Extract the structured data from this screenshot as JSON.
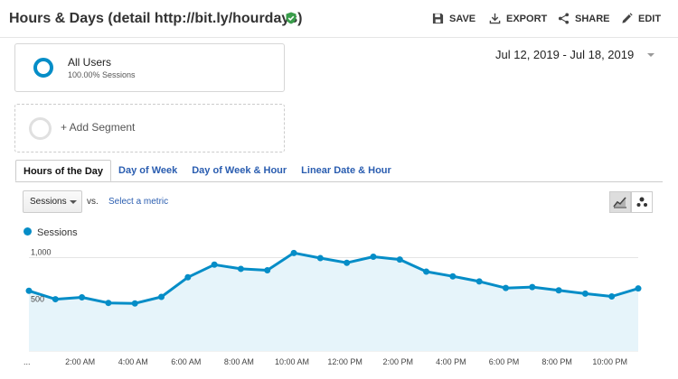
{
  "header": {
    "title": "Hours & Days (detail http://bit.ly/hourdays)",
    "actions": {
      "save": "SAVE",
      "export": "EXPORT",
      "share": "SHARE",
      "edit": "EDIT"
    }
  },
  "segments": {
    "active": {
      "name": "All Users",
      "detail": "100.00% Sessions"
    },
    "add_label": "+ Add Segment"
  },
  "date_range": "Jul 12, 2019 - Jul 18, 2019",
  "tabs": [
    "Hours of the Day",
    "Day of Week",
    "Day of Week & Hour",
    "Linear Date & Hour"
  ],
  "controls": {
    "metric_select": "Sessions",
    "vs": "vs.",
    "select_metric": "Select a metric"
  },
  "colors": {
    "accent": "#058dc7",
    "link": "#2a5db0",
    "verified": "#3a9d4b",
    "fill": "#e6f4fa"
  },
  "chart_data": {
    "type": "area",
    "series": [
      {
        "name": "Sessions",
        "values": [
          645,
          555,
          575,
          515,
          510,
          580,
          790,
          925,
          880,
          865,
          1050,
          995,
          945,
          1010,
          980,
          850,
          800,
          745,
          675,
          685,
          650,
          615,
          585,
          670
        ]
      }
    ],
    "x": [
      0,
      1,
      2,
      3,
      4,
      5,
      6,
      7,
      8,
      9,
      10,
      11,
      12,
      13,
      14,
      15,
      16,
      17,
      18,
      19,
      20,
      21,
      22,
      23
    ],
    "x_tick_labels": [
      "...",
      "2:00 AM",
      "4:00 AM",
      "6:00 AM",
      "8:00 AM",
      "10:00 AM",
      "12:00 PM",
      "2:00 PM",
      "4:00 PM",
      "6:00 PM",
      "8:00 PM",
      "10:00 PM"
    ],
    "y_tick_labels": [
      "1,000",
      "500"
    ],
    "y_ticks": [
      1000,
      500
    ],
    "ylim": [
      0,
      1150
    ],
    "grid": true,
    "legend": "top-left"
  }
}
